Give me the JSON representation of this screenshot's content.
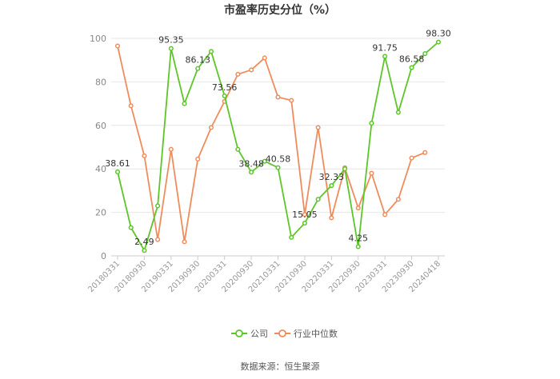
{
  "chart_data": {
    "type": "line",
    "title": "市盈率历史分位（%）",
    "xlabel": "",
    "ylabel": "",
    "ylim": [
      0,
      100
    ],
    "yticks": [
      0,
      20,
      40,
      60,
      80,
      100
    ],
    "grid": true,
    "legend_position": "bottom",
    "x": [
      "20180331",
      "20180630",
      "20180930",
      "20181231",
      "20190331",
      "20190630",
      "20190930",
      "20191231",
      "20200331",
      "20200630",
      "20200930",
      "20201231",
      "20210331",
      "20210630",
      "20210930",
      "20211231",
      "20220331",
      "20220630",
      "20220930",
      "20221231",
      "20230331",
      "20230630",
      "20230930",
      "20231231",
      "20240418"
    ],
    "xtick_labels": [
      "20180331",
      "20180930",
      "20190331",
      "20190930",
      "20200331",
      "20200930",
      "20210331",
      "20210930",
      "20220331",
      "20220930",
      "20230331",
      "20230930",
      "20240418"
    ],
    "series": [
      {
        "name": "公司",
        "color": "#5cc629",
        "values": [
          38.61,
          13,
          2.49,
          23,
          95.35,
          70,
          86.13,
          94,
          73.56,
          49,
          38.48,
          43.5,
          40.58,
          8.5,
          15.05,
          26,
          32.33,
          40,
          4.25,
          61,
          91.75,
          66,
          86.58,
          93,
          98.3
        ],
        "labeled_points": [
          0,
          2,
          4,
          6,
          8,
          10,
          12,
          14,
          16,
          18,
          20,
          22,
          24
        ]
      },
      {
        "name": "行业中位数",
        "color": "#f08c5c",
        "values": [
          96.5,
          69,
          46,
          7.5,
          49,
          6.5,
          44.5,
          59,
          71,
          83.5,
          85.5,
          91,
          73,
          71.5,
          19,
          59,
          17.5,
          40.5,
          22,
          38,
          19,
          26,
          45,
          47.5,
          null
        ]
      }
    ]
  },
  "source_note": "数据来源：恒生聚源"
}
